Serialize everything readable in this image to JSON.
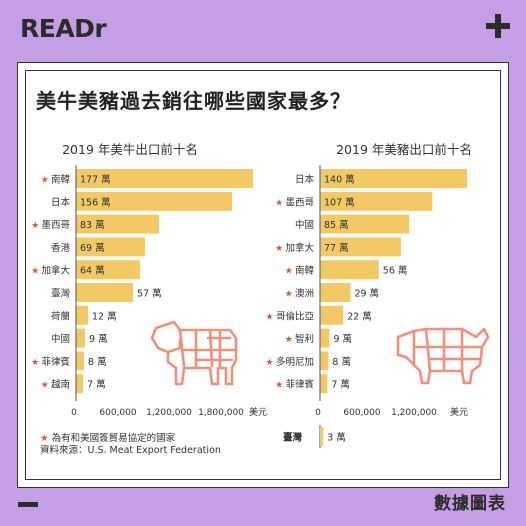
{
  "brand": "READr",
  "footer_label": "數據圖表",
  "title": "美牛美豬過去銷往哪些國家最多？",
  "footnote": {
    "star": "★",
    "star_text": "為有和美國簽貿易協定的國家",
    "source": "資料來源：U.S. Meat Export Federation"
  },
  "colors": {
    "bar": "#f3c965",
    "star": "#e0543a",
    "illustration": "#f0907a",
    "background": "#c59fe6"
  },
  "icons": [
    "plus-icon",
    "minus-icon",
    "cow-icon",
    "pig-icon",
    "star-icon"
  ],
  "chart_data": [
    {
      "type": "bar",
      "orientation": "horizontal",
      "title": "2019 年美牛出口前十名",
      "unit_label": "萬",
      "axis_unit": "美元",
      "xticks": [
        "0",
        "600,000",
        "1,200,000",
        "1,800,000"
      ],
      "xtick_values": [
        0,
        600000,
        1200000,
        1800000
      ],
      "categories": [
        "南韓",
        "日本",
        "墨西哥",
        "香港",
        "加拿大",
        "臺灣",
        "荷蘭",
        "中國",
        "菲律賓",
        "越南"
      ],
      "values": [
        177,
        156,
        83,
        69,
        64,
        57,
        12,
        9,
        8,
        7
      ],
      "trade_agreement": [
        true,
        false,
        true,
        false,
        true,
        false,
        false,
        false,
        true,
        true
      ]
    },
    {
      "type": "bar",
      "orientation": "horizontal",
      "title": "2019 年美豬出口前十名",
      "unit_label": "萬",
      "axis_unit": "美元",
      "xticks": [
        "0",
        "600,000",
        "1,200,000"
      ],
      "xtick_values": [
        0,
        600000,
        1200000
      ],
      "categories": [
        "日本",
        "墨西哥",
        "中國",
        "加拿大",
        "南韓",
        "澳洲",
        "哥倫比亞",
        "智利",
        "多明尼加",
        "菲律賓"
      ],
      "values": [
        140,
        107,
        85,
        77,
        56,
        29,
        22,
        9,
        8,
        7
      ],
      "trade_agreement": [
        false,
        true,
        false,
        true,
        true,
        true,
        true,
        true,
        true,
        true
      ],
      "extra": {
        "category": "臺灣",
        "value": 3
      }
    }
  ]
}
